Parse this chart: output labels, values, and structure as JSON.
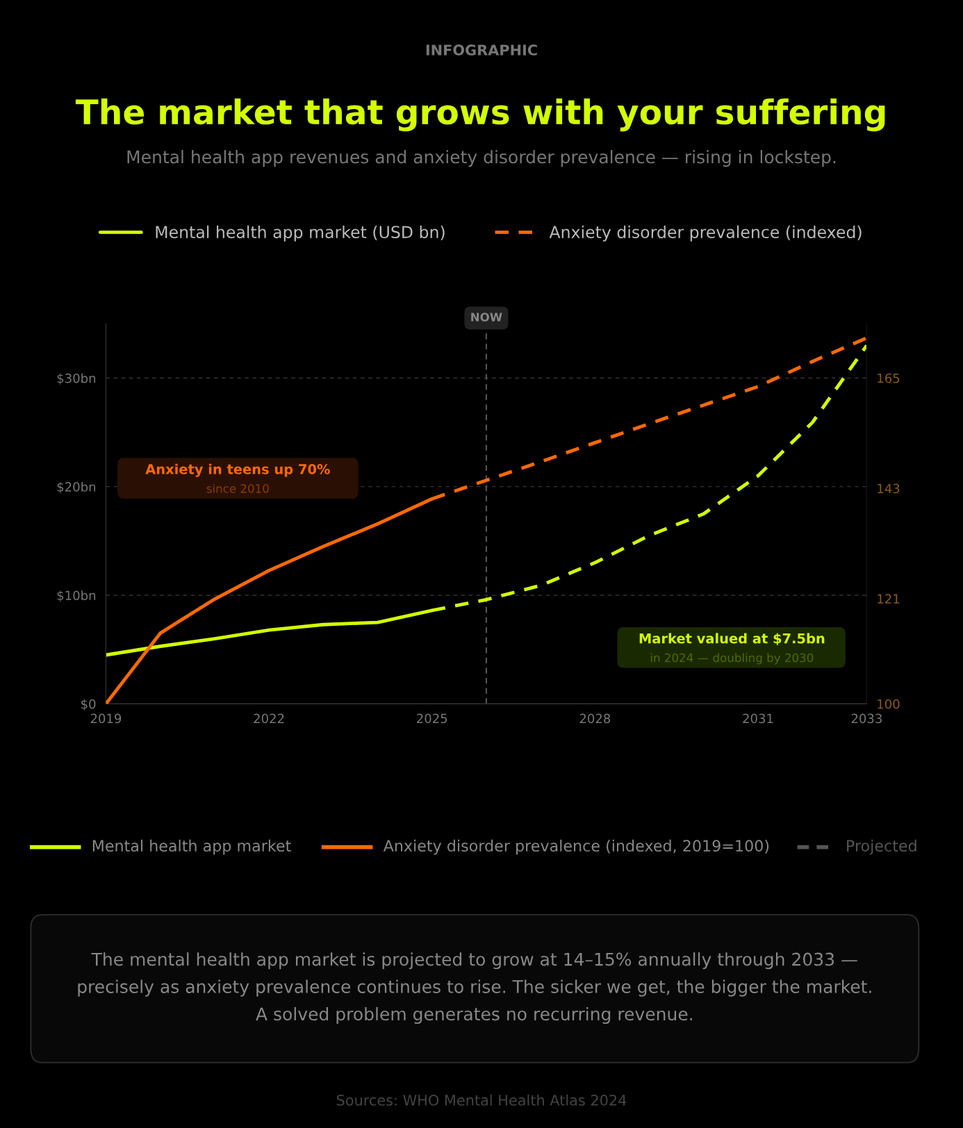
{
  "chart_data": {
    "type": "line",
    "title": "The market that grows with your suffering",
    "subtitle": "Mental health app revenues and anxiety disorder prevalence — rising in lockstep.",
    "x": [
      2019,
      2020,
      2021,
      2022,
      2023,
      2024,
      2025,
      2026,
      2027,
      2028,
      2029,
      2030,
      2031,
      2032,
      2033
    ],
    "series": [
      {
        "name": "Mental health app market (USD bn)",
        "color": "#d4ff00",
        "line_style": "solid",
        "values": [
          4.5,
          5.3,
          6.0,
          6.8,
          7.3,
          7.5,
          8.6,
          null,
          null,
          null,
          null,
          null,
          null,
          null,
          null
        ]
      },
      {
        "color": "#d4ff00",
        "line_style": "dashed",
        "values": [
          null,
          null,
          null,
          null,
          null,
          null,
          8.6,
          9.6,
          10.9,
          13.0,
          15.5,
          17.5,
          21.0,
          25.9,
          33.0
        ]
      },
      {
        "color": "#ff6a00",
        "line_style": "solid",
        "axis": "y2",
        "values": [
          100,
          114.1,
          120.9,
          126.6,
          131.4,
          135.9,
          140.9,
          null,
          null,
          null,
          null,
          null,
          null,
          null,
          null
        ]
      },
      {
        "name": "Anxiety disorder prevalence (indexed)",
        "color": "#ff6a00",
        "line_style": "dashed",
        "axis": "y2",
        "values": [
          null,
          null,
          null,
          null,
          null,
          null,
          140.9,
          144.6,
          148.3,
          152.1,
          155.9,
          159.6,
          163.3,
          168.3,
          173.0
        ]
      }
    ],
    "xlim": [
      2019,
      2033
    ],
    "xticks": [
      2019,
      2022,
      2025,
      2028,
      2031,
      2033
    ],
    "ylim": [
      0,
      35
    ],
    "yticks": [
      {
        "value": 0,
        "label": "$0"
      },
      {
        "value": 10,
        "label": "$10bn"
      },
      {
        "value": 20,
        "label": "$20bn"
      },
      {
        "value": 30,
        "label": "$30bn"
      }
    ],
    "y2lim": [
      100,
      175.83
    ],
    "y2ticks": [
      100,
      121,
      143,
      165
    ],
    "grid": "y",
    "legend": "top",
    "marker": "none",
    "ref_lines": [
      {
        "axis": "x",
        "value": 2026,
        "label": "NOW",
        "color": "#555555",
        "line_style": "dashed"
      }
    ],
    "annotations": [
      "INFOGRAPHIC",
      "Anxiety in teens up 70%",
      "since 2010",
      "Market valued at $7.5bn",
      "in 2024 — doubling by 2030",
      "Mental health app market",
      "Anxiety disorder prevalence (indexed, 2019=100)",
      "Projected",
      "The mental health app market is projected to grow at 14–15% annually through 2033 — precisely as anxiety prevalence continues to rise. The sicker we get, the bigger the market. A solved problem generates no recurring revenue.",
      "Sources: WHO Mental Health Atlas 2024"
    ]
  }
}
